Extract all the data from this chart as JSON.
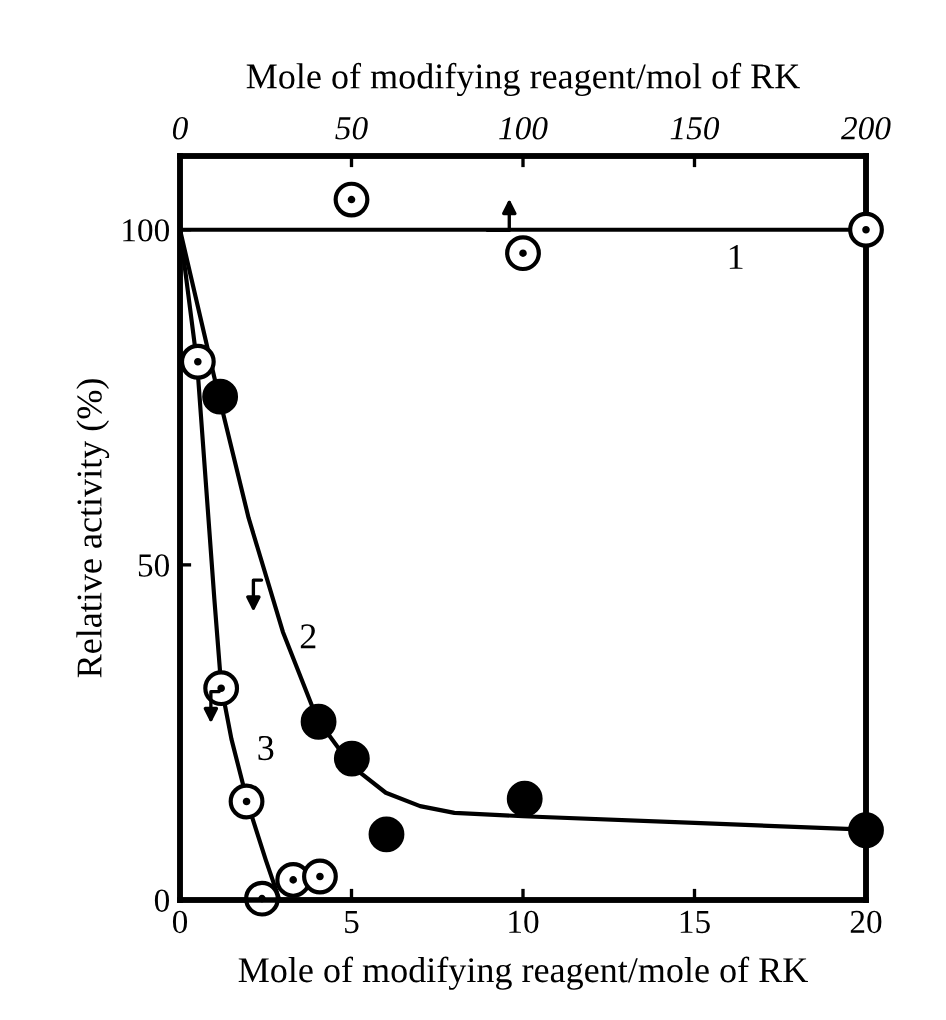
{
  "chart_data": {
    "type": "scatter",
    "xlabel": "Mole of modifying reagent/mole of RK",
    "x2label": "Mole of modifying reagent/mol of RK",
    "ylabel": "Relative activity (%)",
    "xlim": [
      0,
      20
    ],
    "xticks": [
      0,
      5,
      10,
      15,
      20
    ],
    "x2lim": [
      0,
      200
    ],
    "x2ticks": [
      0,
      50,
      100,
      150,
      200
    ],
    "ylim": [
      0,
      111
    ],
    "yticks": [
      0,
      50,
      100
    ],
    "grid": false,
    "marker": "circle",
    "series": [
      {
        "axis": "x2",
        "color": "#ffffff",
        "x": [
          50,
          100,
          200
        ],
        "values": [
          104.5,
          96.5,
          100
        ]
      },
      {
        "type": "line",
        "axis": "x2",
        "color": "#000000",
        "marker": "none",
        "x": [
          0,
          200
        ],
        "values": [
          100,
          100
        ]
      },
      {
        "color": "#000000",
        "x": [
          1.17,
          4.04,
          5.01,
          6.02,
          10.05,
          20
        ],
        "values": [
          75.1,
          26.6,
          21.1,
          9.8,
          15.1,
          10.4
        ]
      },
      {
        "type": "line",
        "color": "#000000",
        "marker": "none",
        "x": [
          0,
          1,
          2,
          3,
          4,
          5,
          6,
          7,
          8,
          10,
          15,
          20
        ],
        "values": [
          100,
          78,
          57,
          40,
          27,
          20,
          16,
          14,
          13,
          12.5,
          11.5,
          10.5
        ]
      },
      {
        "color": "#ffffff",
        "x": [
          0.52,
          1.2,
          1.94,
          2.39,
          3.3,
          4.08
        ],
        "values": [
          80.3,
          31.6,
          14.7,
          0.2,
          3,
          3.5
        ]
      },
      {
        "type": "line",
        "color": "#000000",
        "marker": "none",
        "x": [
          0,
          0.5,
          1,
          1.2,
          1.5,
          2,
          2.5,
          2.9
        ],
        "values": [
          100,
          80,
          45,
          32,
          24,
          14,
          6,
          0
        ]
      }
    ],
    "annotations": [
      "1",
      "2",
      "3"
    ]
  }
}
